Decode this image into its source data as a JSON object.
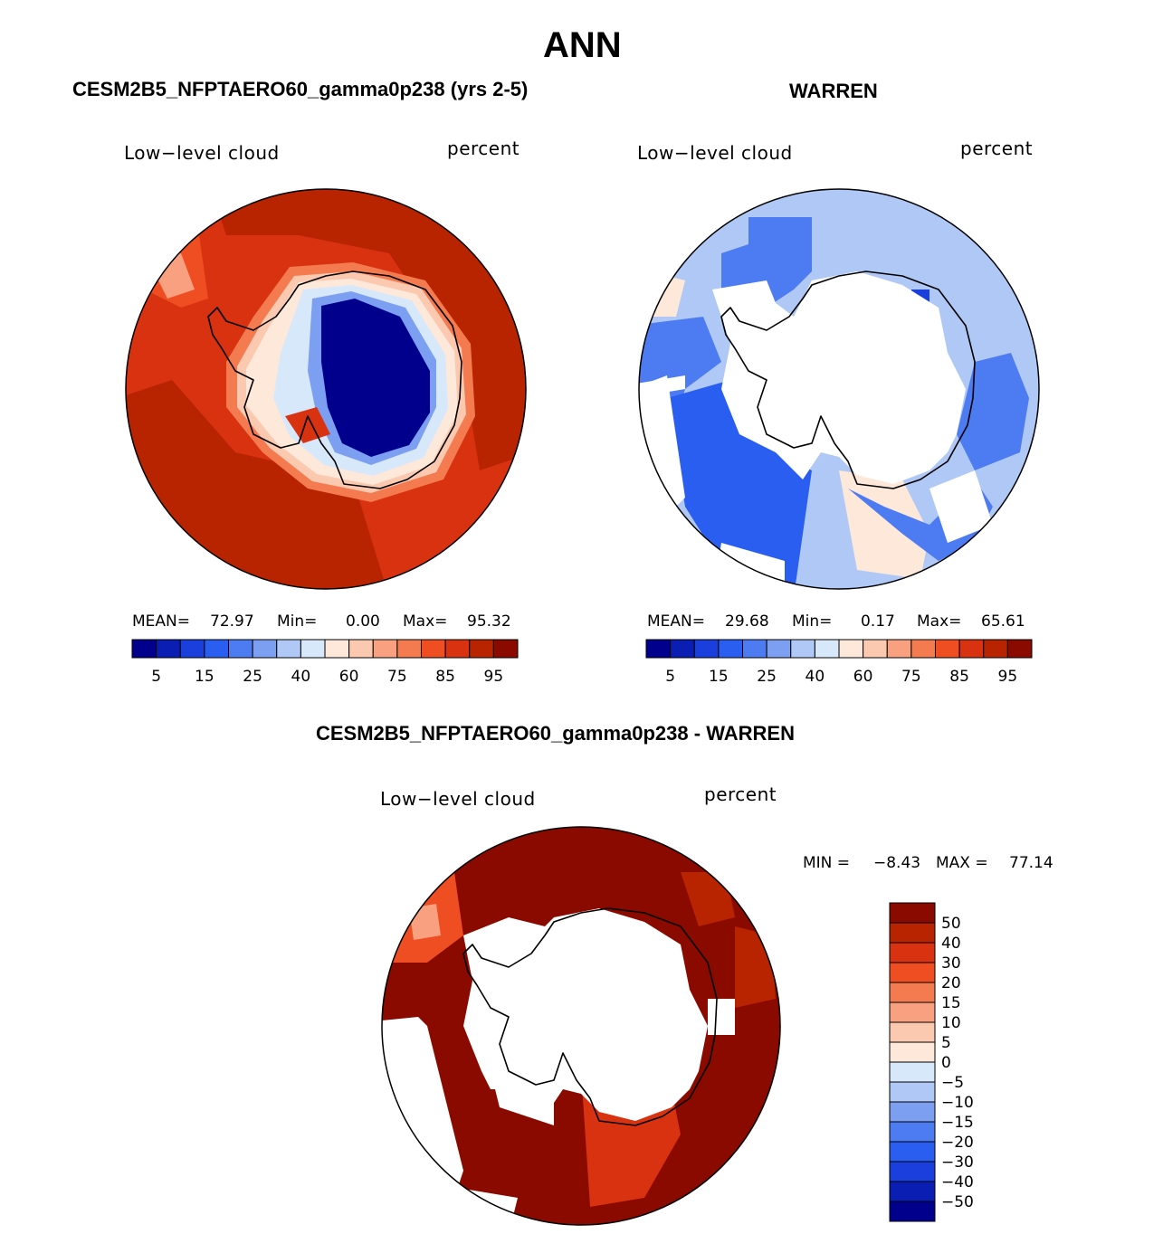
{
  "page_title": "ANN",
  "panel_a": {
    "title": "CESM2B5_NFPTAERO60_gamma0p238 (yrs 2-5)",
    "left_label": "Low−level cloud",
    "right_label": "percent",
    "stats": {
      "mean_label": "MEAN=",
      "mean": "72.97",
      "min_label": "Min=",
      "min": "0.00",
      "max_label": "Max=",
      "max": "95.32"
    },
    "colorbar_labels": [
      "5",
      "15",
      "25",
      "40",
      "60",
      "75",
      "85",
      "95"
    ]
  },
  "panel_b": {
    "title": "WARREN",
    "left_label": "Low−level cloud",
    "right_label": "percent",
    "stats": {
      "mean_label": "MEAN=",
      "mean": "29.68",
      "min_label": "Min=",
      "min": "0.17",
      "max_label": "Max=",
      "max": "65.61"
    },
    "colorbar_labels": [
      "5",
      "15",
      "25",
      "40",
      "60",
      "75",
      "85",
      "95"
    ]
  },
  "panel_c": {
    "title": "CESM2B5_NFPTAERO60_gamma0p238 - WARREN",
    "left_label": "Low−level cloud",
    "right_label": "percent",
    "stats": {
      "min_label": "MIN =",
      "min": "−8.43",
      "max_label": "MAX =",
      "max": "77.14"
    },
    "colorbar_labels": [
      "50",
      "40",
      "30",
      "20",
      "15",
      "10",
      "5",
      "0",
      "−5",
      "−10",
      "−15",
      "−20",
      "−30",
      "−40",
      "−50"
    ]
  },
  "palette_abs": [
    "#00008c",
    "#0a1eb4",
    "#1a3fdc",
    "#2a5ef0",
    "#4d7bf2",
    "#7c9ff2",
    "#b0c8f6",
    "#d8e8fb",
    "#fde8da",
    "#fbc8b0",
    "#f8a080",
    "#f47a50",
    "#ee4e22",
    "#d83210",
    "#b82400",
    "#8a0a00"
  ],
  "palette_diff": [
    "#8a0a00",
    "#b82400",
    "#d83210",
    "#ee4e22",
    "#f47a50",
    "#f8a080",
    "#fbc8b0",
    "#fde8da",
    "#d8e8fb",
    "#b0c8f6",
    "#7c9ff2",
    "#4d7bf2",
    "#2a5ef0",
    "#1a3fdc",
    "#0a1eb4",
    "#00008c"
  ],
  "colors": {
    "ocean_a": "#d83210",
    "ocean_a_dark": "#b82400",
    "land_mask": "#ffffff",
    "coast": "#000000"
  }
}
